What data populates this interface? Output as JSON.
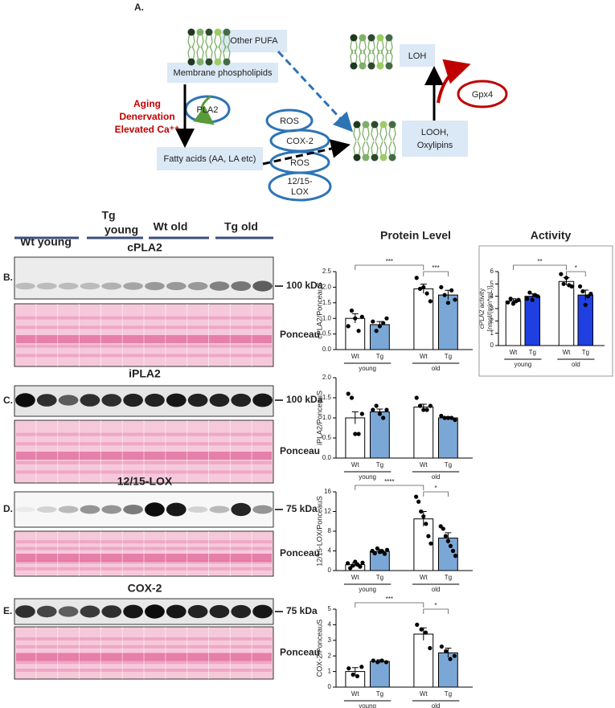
{
  "figure_a": {
    "label": "A.",
    "other_pufa": "Other PUFA",
    "membrane": "Membrane phospholipids",
    "stressors": [
      "Aging",
      "Denervation",
      "Elevated Ca⁺⁺"
    ],
    "pla2": "PLA2",
    "ros_top": "ROS",
    "cox2": "COX-2",
    "ros_bottom": "ROS",
    "lox": [
      "12/15-",
      "LOX"
    ],
    "fatty_acids": "Fatty acids (AA, LA etc)",
    "loh": "LOH",
    "gpx4": "Gpx4",
    "looh": [
      "LOOH,",
      "Oxylipins"
    ]
  },
  "blots": {
    "groups": [
      "Wt young",
      [
        "Tg",
        "young"
      ],
      "Wt old",
      "Tg old"
    ],
    "panels": [
      {
        "label": "B.",
        "protein": "cPLA2",
        "marker": "100 kDa",
        "loading": "Ponceau"
      },
      {
        "label": "C.",
        "protein": "iPLA2",
        "marker": "100 kDa",
        "loading": "Ponceau"
      },
      {
        "label": "D.",
        "protein": "12/15-LOX",
        "marker": "75 kDa",
        "loading": "Ponceau"
      },
      {
        "label": "E.",
        "protein": "COX-2",
        "marker": "75 kDa",
        "loading": "Ponceau"
      }
    ]
  },
  "headers": {
    "protein_level": "Protein Level",
    "activity": "Activity"
  },
  "chart_data": [
    {
      "type": "bar",
      "ylabel": "cPLA2/PonceauS",
      "categories": [
        "Wt",
        "Tg",
        "Wt",
        "Tg"
      ],
      "groups": [
        "young",
        "old"
      ],
      "values": [
        1.0,
        0.8,
        1.95,
        1.75
      ],
      "errors": [
        0.15,
        0.1,
        0.15,
        0.15
      ],
      "points": [
        [
          0.75,
          1.25,
          1.0,
          0.6,
          1.05
        ],
        [
          0.9,
          0.6,
          0.75,
          0.85,
          1.0
        ],
        [
          2.3,
          1.95,
          2.0,
          1.8,
          1.55
        ],
        [
          2.0,
          1.75,
          1.5,
          1.9,
          1.6
        ]
      ],
      "colors": [
        "#ffffff",
        "#7ba7d6",
        "#ffffff",
        "#7ba7d6"
      ],
      "ylim": [
        0,
        2.5
      ],
      "yticks": [
        {
          "value": 0,
          "label": "0.0"
        },
        0.5,
        {
          "value": 1,
          "label": "1.0"
        },
        1.5,
        {
          "value": 2,
          "label": "2.0"
        },
        2.5
      ],
      "significance": [
        "***",
        "***"
      ]
    },
    {
      "type": "bar",
      "ylabel": [
        "cPLA2 activity",
        "[nmol/(min*mL)]"
      ],
      "categories": [
        "Wt",
        "Tg",
        "Wt",
        "Tg"
      ],
      "groups": [
        "young",
        "old"
      ],
      "values": [
        3.6,
        4.0,
        5.2,
        4.1
      ],
      "errors": [
        0.2,
        0.2,
        0.3,
        0.4
      ],
      "points": [
        [
          3.5,
          3.8,
          3.4,
          3.6,
          3.7
        ],
        [
          3.8,
          4.3,
          3.7,
          4.1,
          4.0
        ],
        [
          5.8,
          5.0,
          5.5,
          4.9,
          4.8
        ],
        [
          4.8,
          4.4,
          3.3,
          4.0,
          4.2
        ]
      ],
      "colors": [
        "#ffffff",
        "#1f3fe0",
        "#ffffff",
        "#1f3fe0"
      ],
      "ylim": [
        0,
        6
      ],
      "yticks": [
        0,
        1,
        2,
        3,
        4,
        5,
        6
      ],
      "significance": [
        "**",
        "*"
      ]
    },
    {
      "type": "bar",
      "ylabel": "iPLA2/PonceauS",
      "categories": [
        "Wt",
        "Tg",
        "Wt",
        "Tg"
      ],
      "groups": [
        "young",
        "old"
      ],
      "values": [
        1.0,
        1.15,
        1.27,
        1.0
      ],
      "errors": [
        0.15,
        0.07,
        0.07,
        0.03
      ],
      "points": [
        [
          1.6,
          1.5,
          0.6,
          0.6,
          1.1
        ],
        [
          1.2,
          1.3,
          1.1,
          1.0,
          1.2
        ],
        [
          1.5,
          1.3,
          1.2,
          1.2,
          1.3
        ],
        [
          1.05,
          1.0,
          1.0,
          1.0,
          0.95
        ]
      ],
      "colors": [
        "#ffffff",
        "#7ba7d6",
        "#ffffff",
        "#7ba7d6"
      ],
      "ylim": [
        0,
        2
      ],
      "yticks": [
        {
          "value": 0,
          "label": "0.0"
        },
        0.5,
        {
          "value": 1,
          "label": "1.0"
        },
        1.5,
        {
          "value": 2,
          "label": "2.0"
        }
      ],
      "significance": []
    },
    {
      "type": "bar",
      "ylabel": "12/15-LOX/PonceauS",
      "categories": [
        "Wt",
        "Tg",
        "Wt",
        "Tg"
      ],
      "groups": [
        "young",
        "old"
      ],
      "values": [
        1.2,
        3.9,
        10.5,
        6.6
      ],
      "errors": [
        0.4,
        0.4,
        1.5,
        1.1
      ],
      "points": [
        [
          1.5,
          0.5,
          1.0,
          1.8,
          1.2,
          0.8,
          1.6
        ],
        [
          4.0,
          3.5,
          4.5,
          3.8,
          3.9,
          3.4,
          4.2
        ],
        [
          15,
          14,
          12,
          11,
          9.5,
          7,
          5.5
        ],
        [
          9,
          8.5,
          7,
          6,
          5,
          4,
          3
        ]
      ],
      "colors": [
        "#ffffff",
        "#7ba7d6",
        "#ffffff",
        "#7ba7d6"
      ],
      "ylim": [
        0,
        16
      ],
      "yticks": [
        0,
        4,
        8,
        12,
        16
      ],
      "significance": [
        "****",
        "*"
      ]
    },
    {
      "type": "bar",
      "ylabel": "COX-2/PonceauS",
      "categories": [
        "Wt",
        "Tg",
        "Wt",
        "Tg"
      ],
      "groups": [
        "young",
        "old"
      ],
      "values": [
        1.0,
        1.65,
        3.4,
        2.2
      ],
      "errors": [
        0.25,
        0.1,
        0.4,
        0.3
      ],
      "points": [
        [
          1.2,
          0.8,
          0.7,
          1.3
        ],
        [
          1.7,
          1.6,
          1.7,
          1.6
        ],
        [
          4.0,
          3.7,
          3.5,
          2.5
        ],
        [
          2.6,
          2.3,
          1.8,
          2.0
        ]
      ],
      "colors": [
        "#ffffff",
        "#7ba7d6",
        "#ffffff",
        "#7ba7d6"
      ],
      "ylim": [
        0,
        5
      ],
      "yticks": [
        0,
        1,
        2,
        3,
        4,
        5
      ],
      "significance": [
        "***",
        "*"
      ]
    }
  ]
}
